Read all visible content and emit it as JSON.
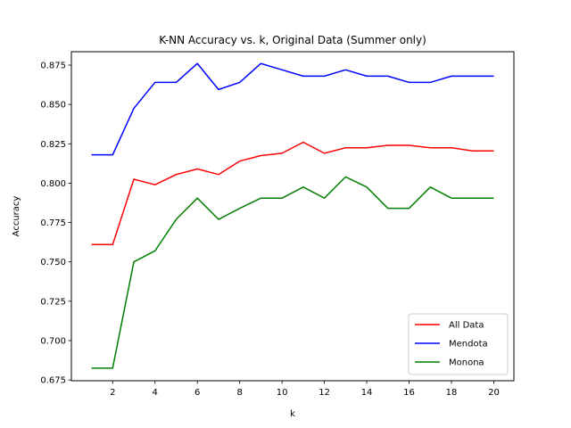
{
  "chart_data": {
    "type": "line",
    "title": "K-NN Accuracy vs. k, Original Data (Summer only)",
    "xlabel": "k",
    "ylabel": "Accuracy",
    "x": [
      1,
      2,
      3,
      4,
      5,
      6,
      7,
      8,
      9,
      10,
      11,
      12,
      13,
      14,
      15,
      16,
      17,
      18,
      19,
      20
    ],
    "xlim": [
      0.05,
      20.95
    ],
    "ylim": [
      0.6745,
      0.8835
    ],
    "xticks": [
      2,
      4,
      6,
      8,
      10,
      12,
      14,
      16,
      18,
      20
    ],
    "yticks": [
      "0.675",
      "0.700",
      "0.725",
      "0.750",
      "0.775",
      "0.800",
      "0.825",
      "0.850",
      "0.875"
    ],
    "grid": false,
    "legend_position": "lower right",
    "series": [
      {
        "name": "All Data",
        "color": "#ff0000",
        "values": [
          0.761,
          0.761,
          0.8025,
          0.799,
          0.8055,
          0.809,
          0.8055,
          0.814,
          0.8175,
          0.819,
          0.826,
          0.819,
          0.8225,
          0.8225,
          0.824,
          0.824,
          0.8225,
          0.8225,
          0.8205,
          0.8205
        ]
      },
      {
        "name": "Mendota",
        "color": "#0000ff",
        "values": [
          0.818,
          0.818,
          0.8475,
          0.864,
          0.864,
          0.876,
          0.8595,
          0.864,
          0.876,
          0.872,
          0.868,
          0.868,
          0.872,
          0.868,
          0.868,
          0.864,
          0.864,
          0.868,
          0.868,
          0.868
        ]
      },
      {
        "name": "Monona",
        "color": "#008000",
        "values": [
          0.6825,
          0.6825,
          0.75,
          0.757,
          0.777,
          0.7905,
          0.777,
          0.784,
          0.7905,
          0.7905,
          0.7975,
          0.7905,
          0.804,
          0.7975,
          0.784,
          0.784,
          0.7975,
          0.7905,
          0.7905,
          0.7905
        ]
      }
    ]
  }
}
